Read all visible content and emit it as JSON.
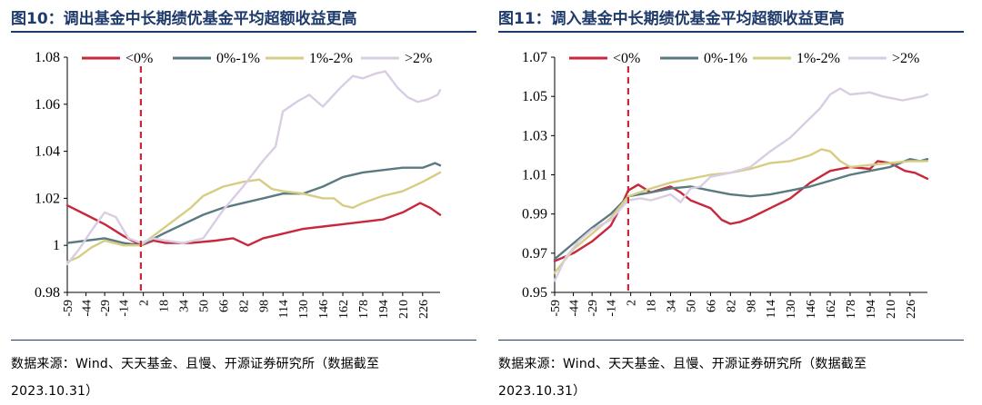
{
  "panels": [
    {
      "title": "图10：调出基金中长期绩优基金平均超额收益更高",
      "source_line1": "数据来源：Wind、天天基金、且慢、开源证券研究所（数据截至",
      "source_line2": "2023.10.31）"
    },
    {
      "title": "图11：调入基金中长期绩优基金平均超额收益更高",
      "source_line1": "数据来源：Wind、天天基金、且慢、开源证券研究所（数据截至",
      "source_line2": "2023.10.31）"
    }
  ],
  "colors": {
    "neg": "#c8283c",
    "p0_1": "#5a7a82",
    "p1_2": "#d6cd82",
    "gt2": "#d9cde3",
    "marker": "#c8283c",
    "title": "#1f3b6b"
  },
  "chart_data": [
    {
      "type": "line",
      "title": "图10：调出基金中长期绩优基金平均超额收益更高",
      "xlabel": "",
      "ylabel": "",
      "xlim": [
        -59,
        240
      ],
      "ylim": [
        0.98,
        1.08
      ],
      "yticks": [
        0.98,
        1,
        1.02,
        1.04,
        1.06,
        1.08
      ],
      "ytick_labels": [
        "0.98",
        "1",
        "1.02",
        "1.04",
        "1.06",
        "1.08"
      ],
      "xticks": [
        -59,
        -44,
        -29,
        -14,
        2,
        18,
        34,
        50,
        66,
        82,
        98,
        114,
        130,
        146,
        162,
        178,
        194,
        210,
        226
      ],
      "xtick_labels": [
        "-59",
        "-44",
        "-29",
        "-14",
        "2",
        "18",
        "34",
        "50",
        "66",
        "82",
        "98",
        "114",
        "130",
        "146",
        "162",
        "178",
        "194",
        "210",
        "226"
      ],
      "vline_x": 0,
      "legend": "top",
      "series": [
        {
          "name": "<0%",
          "color_key": "neg",
          "points": [
            [
              -59,
              1.017
            ],
            [
              -44,
              1.013
            ],
            [
              -29,
              1.009
            ],
            [
              -14,
              1.004
            ],
            [
              0,
              1.0
            ],
            [
              10,
              1.002
            ],
            [
              20,
              1.001
            ],
            [
              40,
              1.001
            ],
            [
              60,
              1.002
            ],
            [
              74,
              1.003
            ],
            [
              86,
              1.0
            ],
            [
              98,
              1.003
            ],
            [
              114,
              1.005
            ],
            [
              130,
              1.007
            ],
            [
              146,
              1.008
            ],
            [
              162,
              1.009
            ],
            [
              178,
              1.01
            ],
            [
              194,
              1.011
            ],
            [
              210,
              1.014
            ],
            [
              224,
              1.018
            ],
            [
              232,
              1.016
            ],
            [
              240,
              1.013
            ]
          ]
        },
        {
          "name": "0%-1%",
          "color_key": "p0_1",
          "points": [
            [
              -59,
              1.001
            ],
            [
              -44,
              1.002
            ],
            [
              -29,
              1.003
            ],
            [
              -14,
              1.001
            ],
            [
              0,
              1.0
            ],
            [
              18,
              1.005
            ],
            [
              34,
              1.009
            ],
            [
              50,
              1.013
            ],
            [
              66,
              1.016
            ],
            [
              82,
              1.018
            ],
            [
              98,
              1.02
            ],
            [
              114,
              1.022
            ],
            [
              130,
              1.022
            ],
            [
              146,
              1.025
            ],
            [
              162,
              1.029
            ],
            [
              178,
              1.031
            ],
            [
              194,
              1.032
            ],
            [
              210,
              1.033
            ],
            [
              226,
              1.033
            ],
            [
              236,
              1.035
            ],
            [
              240,
              1.034
            ]
          ]
        },
        {
          "name": "1%-2%",
          "color_key": "p1_2",
          "points": [
            [
              -59,
              0.993
            ],
            [
              -50,
              0.995
            ],
            [
              -40,
              0.999
            ],
            [
              -29,
              1.002
            ],
            [
              -14,
              1.0
            ],
            [
              0,
              1.0
            ],
            [
              10,
              1.004
            ],
            [
              25,
              1.01
            ],
            [
              40,
              1.016
            ],
            [
              50,
              1.021
            ],
            [
              66,
              1.025
            ],
            [
              82,
              1.027
            ],
            [
              95,
              1.028
            ],
            [
              105,
              1.024
            ],
            [
              114,
              1.023
            ],
            [
              130,
              1.022
            ],
            [
              146,
              1.02
            ],
            [
              155,
              1.02
            ],
            [
              162,
              1.017
            ],
            [
              170,
              1.016
            ],
            [
              178,
              1.018
            ],
            [
              194,
              1.021
            ],
            [
              210,
              1.023
            ],
            [
              226,
              1.027
            ],
            [
              240,
              1.031
            ]
          ]
        },
        {
          "name": ">2%",
          "color_key": "gt2",
          "points": [
            [
              -59,
              0.992
            ],
            [
              -50,
              0.998
            ],
            [
              -40,
              1.006
            ],
            [
              -29,
              1.014
            ],
            [
              -20,
              1.012
            ],
            [
              -10,
              1.003
            ],
            [
              0,
              1.001
            ],
            [
              10,
              1.003
            ],
            [
              20,
              1.002
            ],
            [
              34,
              1.001
            ],
            [
              50,
              1.003
            ],
            [
              66,
              1.015
            ],
            [
              82,
              1.025
            ],
            [
              98,
              1.036
            ],
            [
              108,
              1.042
            ],
            [
              114,
              1.057
            ],
            [
              125,
              1.061
            ],
            [
              135,
              1.064
            ],
            [
              146,
              1.059
            ],
            [
              160,
              1.067
            ],
            [
              170,
              1.072
            ],
            [
              178,
              1.071
            ],
            [
              188,
              1.073
            ],
            [
              196,
              1.074
            ],
            [
              206,
              1.067
            ],
            [
              214,
              1.063
            ],
            [
              222,
              1.061
            ],
            [
              230,
              1.062
            ],
            [
              238,
              1.064
            ],
            [
              240,
              1.066
            ]
          ]
        }
      ]
    },
    {
      "type": "line",
      "title": "图11：调入基金中长期绩优基金平均超额收益更高",
      "xlabel": "",
      "ylabel": "",
      "xlim": [
        -59,
        240
      ],
      "ylim": [
        0.95,
        1.07
      ],
      "yticks": [
        0.95,
        0.97,
        0.99,
        1.01,
        1.03,
        1.05,
        1.07
      ],
      "ytick_labels": [
        "0.95",
        "0.97",
        "0.99",
        "1.01",
        "1.03",
        "1.05",
        "1.07"
      ],
      "xticks": [
        -59,
        -44,
        -29,
        -14,
        2,
        18,
        34,
        50,
        66,
        82,
        98,
        114,
        130,
        146,
        162,
        178,
        194,
        210,
        226
      ],
      "xtick_labels": [
        "-59",
        "-44",
        "-29",
        "-14",
        "2",
        "18",
        "34",
        "50",
        "66",
        "82",
        "98",
        "114",
        "130",
        "146",
        "162",
        "178",
        "194",
        "210",
        "226"
      ],
      "vline_x": 0,
      "legend": "top",
      "series": [
        {
          "name": "<0%",
          "color_key": "neg",
          "points": [
            [
              -59,
              0.966
            ],
            [
              -44,
              0.97
            ],
            [
              -29,
              0.976
            ],
            [
              -14,
              0.984
            ],
            [
              -5,
              0.995
            ],
            [
              0,
              1.002
            ],
            [
              8,
              1.005
            ],
            [
              18,
              1.001
            ],
            [
              34,
              1.004
            ],
            [
              42,
              1.001
            ],
            [
              50,
              0.997
            ],
            [
              66,
              0.993
            ],
            [
              75,
              0.987
            ],
            [
              82,
              0.985
            ],
            [
              90,
              0.986
            ],
            [
              98,
              0.988
            ],
            [
              114,
              0.993
            ],
            [
              130,
              0.998
            ],
            [
              146,
              1.006
            ],
            [
              162,
              1.012
            ],
            [
              178,
              1.014
            ],
            [
              194,
              1.013
            ],
            [
              200,
              1.017
            ],
            [
              210,
              1.016
            ],
            [
              222,
              1.012
            ],
            [
              230,
              1.011
            ],
            [
              240,
              1.008
            ]
          ]
        },
        {
          "name": "0%-1%",
          "color_key": "p0_1",
          "points": [
            [
              -59,
              0.967
            ],
            [
              -44,
              0.975
            ],
            [
              -29,
              0.983
            ],
            [
              -14,
              0.99
            ],
            [
              0,
              0.999
            ],
            [
              18,
              1.001
            ],
            [
              34,
              1.003
            ],
            [
              50,
              1.004
            ],
            [
              66,
              1.002
            ],
            [
              82,
              1.0
            ],
            [
              98,
              0.999
            ],
            [
              114,
              1.0
            ],
            [
              130,
              1.002
            ],
            [
              146,
              1.004
            ],
            [
              162,
              1.007
            ],
            [
              178,
              1.01
            ],
            [
              194,
              1.012
            ],
            [
              210,
              1.014
            ],
            [
              226,
              1.018
            ],
            [
              234,
              1.017
            ],
            [
              240,
              1.018
            ]
          ]
        },
        {
          "name": "1%-2%",
          "color_key": "p1_2",
          "points": [
            [
              -59,
              0.96
            ],
            [
              -44,
              0.972
            ],
            [
              -29,
              0.98
            ],
            [
              -14,
              0.988
            ],
            [
              0,
              0.999
            ],
            [
              18,
              1.003
            ],
            [
              34,
              1.006
            ],
            [
              50,
              1.008
            ],
            [
              66,
              1.01
            ],
            [
              82,
              1.011
            ],
            [
              98,
              1.013
            ],
            [
              114,
              1.016
            ],
            [
              130,
              1.017
            ],
            [
              146,
              1.02
            ],
            [
              155,
              1.023
            ],
            [
              162,
              1.022
            ],
            [
              170,
              1.017
            ],
            [
              178,
              1.014
            ],
            [
              194,
              1.015
            ],
            [
              210,
              1.016
            ],
            [
              226,
              1.017
            ],
            [
              240,
              1.017
            ]
          ]
        },
        {
          "name": ">2%",
          "color_key": "gt2",
          "points": [
            [
              -59,
              0.956
            ],
            [
              -50,
              0.968
            ],
            [
              -40,
              0.976
            ],
            [
              -29,
              0.982
            ],
            [
              -14,
              0.987
            ],
            [
              0,
              0.997
            ],
            [
              10,
              0.998
            ],
            [
              18,
              0.997
            ],
            [
              34,
              1.0
            ],
            [
              42,
              0.996
            ],
            [
              50,
              1.003
            ],
            [
              58,
              1.004
            ],
            [
              66,
              1.009
            ],
            [
              82,
              1.011
            ],
            [
              98,
              1.014
            ],
            [
              114,
              1.022
            ],
            [
              130,
              1.029
            ],
            [
              146,
              1.039
            ],
            [
              154,
              1.044
            ],
            [
              162,
              1.051
            ],
            [
              170,
              1.054
            ],
            [
              178,
              1.051
            ],
            [
              194,
              1.052
            ],
            [
              204,
              1.05
            ],
            [
              212,
              1.049
            ],
            [
              220,
              1.048
            ],
            [
              228,
              1.049
            ],
            [
              236,
              1.05
            ],
            [
              240,
              1.051
            ]
          ]
        }
      ]
    }
  ]
}
